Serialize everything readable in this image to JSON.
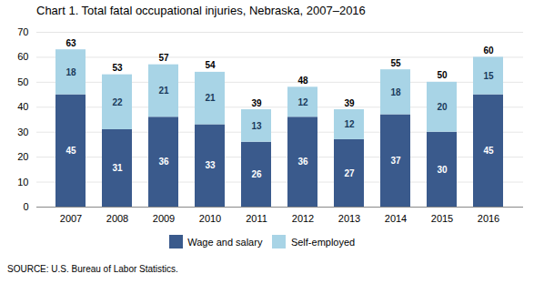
{
  "chart_data": {
    "type": "bar",
    "stacked": true,
    "title": "Chart 1. Total fatal occupational injuries, Nebraska, 2007–2016",
    "categories": [
      "2007",
      "2008",
      "2009",
      "2010",
      "2011",
      "2012",
      "2013",
      "2014",
      "2015",
      "2016"
    ],
    "series": [
      {
        "name": "Wage and salary",
        "color": "#3A5A8C",
        "values": [
          45,
          31,
          36,
          33,
          26,
          36,
          27,
          37,
          30,
          45
        ]
      },
      {
        "name": "Self-employed",
        "color": "#A8D4E6",
        "values": [
          18,
          22,
          21,
          21,
          13,
          12,
          12,
          18,
          20,
          15
        ]
      }
    ],
    "totals": [
      63,
      53,
      57,
      54,
      39,
      48,
      39,
      55,
      50,
      60
    ],
    "ylim": [
      0,
      70
    ],
    "yticks": [
      0,
      10,
      20,
      30,
      40,
      50,
      60,
      70
    ],
    "grid": true,
    "data_labels": true,
    "legend": "bottom",
    "caption": "SOURCE: U.S. Bureau of Labor Statistics."
  }
}
